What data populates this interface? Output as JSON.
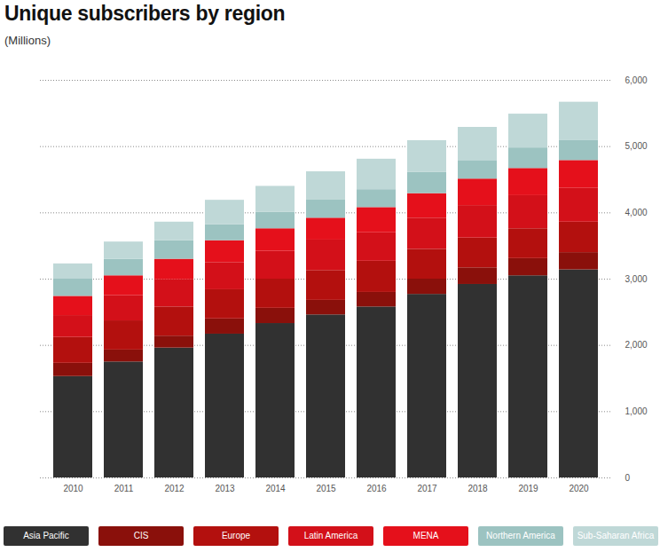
{
  "chart_data": {
    "type": "bar",
    "stacked": true,
    "grid": true,
    "title": "Unique subscribers by region",
    "subtitle": "(Millions)",
    "categories": [
      "2010",
      "2011",
      "2012",
      "2013",
      "2014",
      "2015",
      "2016",
      "2017",
      "2018",
      "2019",
      "2020"
    ],
    "series": [
      {
        "name": "Asia Pacific",
        "color": "#313131",
        "values": [
          1530,
          1750,
          1960,
          2170,
          2330,
          2460,
          2580,
          2770,
          2920,
          3050,
          3140
        ]
      },
      {
        "name": "CIS",
        "color": "#8a100b",
        "values": [
          200,
          180,
          180,
          230,
          230,
          220,
          220,
          230,
          250,
          260,
          260
        ]
      },
      {
        "name": "Europe",
        "color": "#b3100e",
        "values": [
          390,
          440,
          440,
          440,
          440,
          450,
          470,
          450,
          450,
          450,
          460
        ]
      },
      {
        "name": "Latin America",
        "color": "#d31019",
        "values": [
          330,
          380,
          410,
          410,
          420,
          460,
          430,
          470,
          490,
          500,
          510
        ]
      },
      {
        "name": "MENA",
        "color": "#e5101b",
        "values": [
          290,
          300,
          310,
          330,
          340,
          330,
          380,
          370,
          400,
          410,
          420
        ]
      },
      {
        "name": "Northern America",
        "color": "#9cc3c1",
        "values": [
          260,
          250,
          280,
          240,
          250,
          280,
          270,
          320,
          280,
          310,
          300
        ]
      },
      {
        "name": "Sub-Saharan Africa",
        "color": "#bfd8d7",
        "values": [
          230,
          260,
          280,
          370,
          390,
          420,
          460,
          480,
          500,
          510,
          580
        ]
      }
    ],
    "ylim": [
      0,
      6000
    ],
    "yticks": [
      0,
      {
        "value": 1000,
        "label": "1,000"
      },
      {
        "value": 2000,
        "label": "2,000"
      },
      {
        "value": 3000,
        "label": "3,000"
      },
      {
        "value": 4000,
        "label": "4,000"
      },
      {
        "value": 5000,
        "label": "5,000"
      },
      {
        "value": 6000,
        "label": "6,000"
      }
    ],
    "legend": "bottom"
  }
}
